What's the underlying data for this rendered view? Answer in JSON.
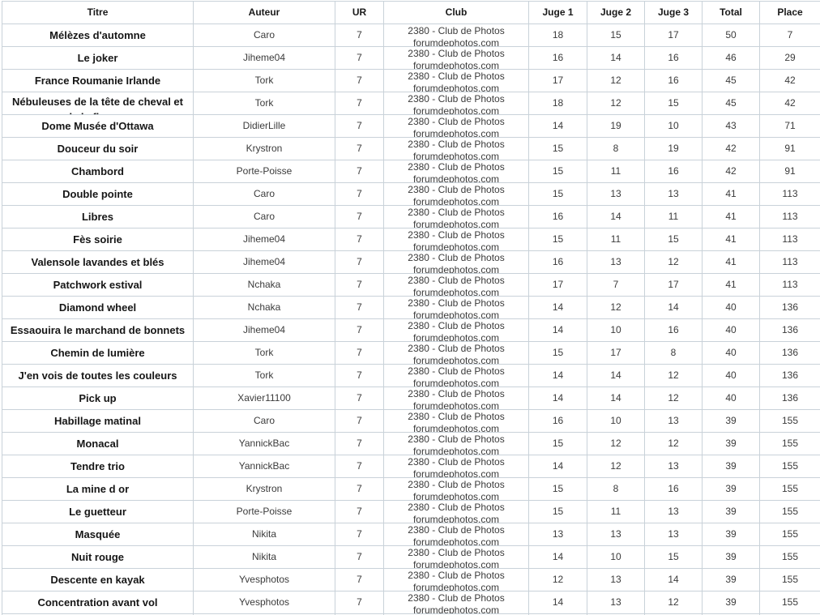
{
  "table": {
    "columns": [
      {
        "key": "titre",
        "label": "Titre"
      },
      {
        "key": "auteur",
        "label": "Auteur"
      },
      {
        "key": "ur",
        "label": "UR"
      },
      {
        "key": "club",
        "label": "Club"
      },
      {
        "key": "juge1",
        "label": "Juge 1"
      },
      {
        "key": "juge2",
        "label": "Juge 2"
      },
      {
        "key": "juge3",
        "label": "Juge 3"
      },
      {
        "key": "total",
        "label": "Total"
      },
      {
        "key": "place",
        "label": "Place"
      }
    ],
    "club_line1": "2380 - Club de Photos",
    "club_line2": "forumdephotos.com",
    "rows": [
      {
        "titre": "Mélèzes d'automne",
        "auteur": "Caro",
        "ur": "7",
        "juge1": 18,
        "juge2": 15,
        "juge3": 17,
        "total": 50,
        "place": 7
      },
      {
        "titre": "Le joker",
        "auteur": "Jiheme04",
        "ur": "7",
        "juge1": 16,
        "juge2": 14,
        "juge3": 16,
        "total": 46,
        "place": 29
      },
      {
        "titre": "France Roumanie Irlande",
        "auteur": "Tork",
        "ur": "7",
        "juge1": 17,
        "juge2": 12,
        "juge3": 16,
        "total": 45,
        "place": 42
      },
      {
        "titre": "Nébuleuses de la tête de cheval et",
        "titre_line2": "de la flamme",
        "auteur": "Tork",
        "ur": "7",
        "juge1": 18,
        "juge2": 12,
        "juge3": 15,
        "total": 45,
        "place": 42
      },
      {
        "titre": "Dome Musée d'Ottawa",
        "auteur": "DidierLille",
        "ur": "7",
        "juge1": 14,
        "juge2": 19,
        "juge3": 10,
        "total": 43,
        "place": 71
      },
      {
        "titre": "Douceur du soir",
        "auteur": "Krystron",
        "ur": "7",
        "juge1": 15,
        "juge2": 8,
        "juge3": 19,
        "total": 42,
        "place": 91
      },
      {
        "titre": "Chambord",
        "auteur": "Porte-Poisse",
        "ur": "7",
        "juge1": 15,
        "juge2": 11,
        "juge3": 16,
        "total": 42,
        "place": 91
      },
      {
        "titre": "Double pointe",
        "auteur": "Caro",
        "ur": "7",
        "juge1": 15,
        "juge2": 13,
        "juge3": 13,
        "total": 41,
        "place": 113
      },
      {
        "titre": "Libres",
        "auteur": "Caro",
        "ur": "7",
        "juge1": 16,
        "juge2": 14,
        "juge3": 11,
        "total": 41,
        "place": 113
      },
      {
        "titre": "Fès soirie",
        "auteur": "Jiheme04",
        "ur": "7",
        "juge1": 15,
        "juge2": 11,
        "juge3": 15,
        "total": 41,
        "place": 113
      },
      {
        "titre": "Valensole lavandes et blés",
        "auteur": "Jiheme04",
        "ur": "7",
        "juge1": 16,
        "juge2": 13,
        "juge3": 12,
        "total": 41,
        "place": 113
      },
      {
        "titre": "Patchwork estival",
        "auteur": "Nchaka",
        "ur": "7",
        "juge1": 17,
        "juge2": 7,
        "juge3": 17,
        "total": 41,
        "place": 113
      },
      {
        "titre": "Diamond wheel",
        "auteur": "Nchaka",
        "ur": "7",
        "juge1": 14,
        "juge2": 12,
        "juge3": 14,
        "total": 40,
        "place": 136
      },
      {
        "titre": "Essaouira le marchand de bonnets",
        "auteur": "Jiheme04",
        "ur": "7",
        "juge1": 14,
        "juge2": 10,
        "juge3": 16,
        "total": 40,
        "place": 136
      },
      {
        "titre": "Chemin de lumière",
        "auteur": "Tork",
        "ur": "7",
        "juge1": 15,
        "juge2": 17,
        "juge3": 8,
        "total": 40,
        "place": 136
      },
      {
        "titre": "J'en vois de toutes les couleurs",
        "auteur": "Tork",
        "ur": "7",
        "juge1": 14,
        "juge2": 14,
        "juge3": 12,
        "total": 40,
        "place": 136
      },
      {
        "titre": "Pick up",
        "auteur": "Xavier11100",
        "ur": "7",
        "juge1": 14,
        "juge2": 14,
        "juge3": 12,
        "total": 40,
        "place": 136
      },
      {
        "titre": "Habillage matinal",
        "auteur": "Caro",
        "ur": "7",
        "juge1": 16,
        "juge2": 10,
        "juge3": 13,
        "total": 39,
        "place": 155
      },
      {
        "titre": "Monacal",
        "auteur": "YannickBac",
        "ur": "7",
        "juge1": 15,
        "juge2": 12,
        "juge3": 12,
        "total": 39,
        "place": 155
      },
      {
        "titre": "Tendre trio",
        "auteur": "YannickBac",
        "ur": "7",
        "juge1": 14,
        "juge2": 12,
        "juge3": 13,
        "total": 39,
        "place": 155
      },
      {
        "titre": "La mine d or",
        "auteur": "Krystron",
        "ur": "7",
        "juge1": 15,
        "juge2": 8,
        "juge3": 16,
        "total": 39,
        "place": 155
      },
      {
        "titre": "Le guetteur",
        "auteur": "Porte-Poisse",
        "ur": "7",
        "juge1": 15,
        "juge2": 11,
        "juge3": 13,
        "total": 39,
        "place": 155
      },
      {
        "titre": "Masquée",
        "auteur": "Nikita",
        "ur": "7",
        "juge1": 13,
        "juge2": 13,
        "juge3": 13,
        "total": 39,
        "place": 155
      },
      {
        "titre": "Nuit rouge",
        "auteur": "Nikita",
        "ur": "7",
        "juge1": 14,
        "juge2": 10,
        "juge3": 15,
        "total": 39,
        "place": 155
      },
      {
        "titre": "Descente en kayak",
        "auteur": "Yvesphotos",
        "ur": "7",
        "juge1": 12,
        "juge2": 13,
        "juge3": 14,
        "total": 39,
        "place": 155
      },
      {
        "titre": "Concentration avant vol",
        "auteur": "Yvesphotos",
        "ur": "7",
        "juge1": 14,
        "juge2": 13,
        "juge3": 12,
        "total": 39,
        "place": 155
      }
    ]
  },
  "colors": {
    "border": "#c9d2d9",
    "text": "#3b3b3b",
    "title_text": "#161616",
    "background": "#ffffff"
  }
}
